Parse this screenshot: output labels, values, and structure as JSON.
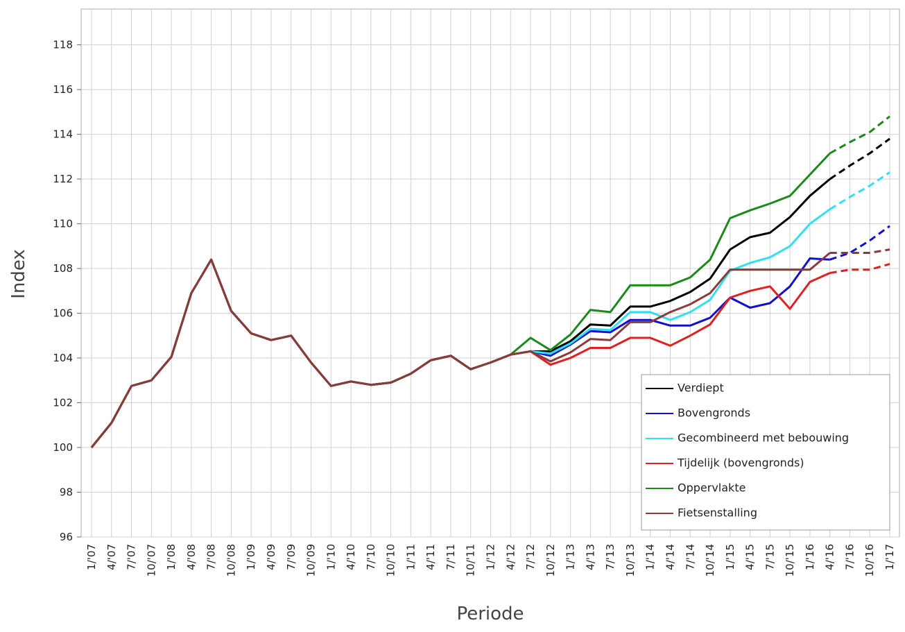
{
  "chart_data": {
    "type": "line",
    "x_label": "Periode",
    "y_label": "Index",
    "categories": [
      "1/'07",
      "4/'07",
      "7/'07",
      "10/'07",
      "1/'08",
      "4/'08",
      "7/'08",
      "10/'08",
      "1/'09",
      "4/'09",
      "7/'09",
      "10/'09",
      "1/'10",
      "4/'10",
      "7/'10",
      "10/'10",
      "1/'11",
      "4/'11",
      "7/'11",
      "10/'11",
      "1/'12",
      "4/'12",
      "7/'12",
      "10/'12",
      "1/'13",
      "4/'13",
      "7/'13",
      "10/'13",
      "1/'14",
      "4/'14",
      "7/'14",
      "10/'14",
      "1/'15",
      "4/'15",
      "7/'15",
      "10/'15",
      "1/'16",
      "4/'16",
      "7/'16",
      "10/'16",
      "1/'17"
    ],
    "dashed_from": "4/'16",
    "ylim": [
      96,
      119.6
    ],
    "yticks": [
      96,
      98,
      100,
      102,
      104,
      106,
      108,
      110,
      112,
      114,
      116,
      118
    ],
    "grid": true,
    "legend": "lower right",
    "series": [
      {
        "name": "Verdiept",
        "color": "#000000",
        "values": [
          100,
          101.1,
          102.75,
          103,
          104.05,
          106.9,
          108.4,
          106.1,
          105.1,
          104.8,
          105,
          103.8,
          102.75,
          102.95,
          102.8,
          102.9,
          103.3,
          103.9,
          104.1,
          103.5,
          103.8,
          104.15,
          104.3,
          104.3,
          104.75,
          105.5,
          105.45,
          106.3,
          106.3,
          106.55,
          106.95,
          107.55,
          108.85,
          109.4,
          109.6,
          110.3,
          111.25,
          112,
          112.6,
          113.15,
          113.8
        ]
      },
      {
        "name": "Bovengronds",
        "color": "#1010d0",
        "values": [
          100,
          101.1,
          102.75,
          103,
          104.05,
          106.9,
          108.4,
          106.1,
          105.1,
          104.8,
          105,
          103.8,
          102.75,
          102.95,
          102.8,
          102.9,
          103.3,
          103.9,
          104.1,
          103.5,
          103.8,
          104.15,
          104.3,
          104.1,
          104.6,
          105.2,
          105.15,
          105.7,
          105.7,
          105.45,
          105.45,
          105.8,
          106.7,
          106.25,
          106.45,
          107.2,
          108.45,
          108.4,
          108.7,
          109.25,
          109.9
        ]
      },
      {
        "name": "Gecombineerd met bebouwing",
        "color": "#30e0f0",
        "values": [
          100,
          101.1,
          102.75,
          103,
          104.05,
          106.9,
          108.4,
          106.1,
          105.1,
          104.8,
          105,
          103.8,
          102.75,
          102.95,
          102.8,
          102.9,
          103.3,
          103.9,
          104.1,
          103.5,
          103.8,
          104.15,
          104.3,
          104.2,
          104.65,
          105.3,
          105.25,
          106.05,
          106.05,
          105.7,
          106.05,
          106.6,
          107.9,
          108.25,
          108.5,
          109,
          110,
          110.65,
          111.2,
          111.7,
          112.3
        ]
      },
      {
        "name": "Tijdelijk (bovengronds)",
        "color": "#e02020",
        "values": [
          100,
          101.1,
          102.75,
          103,
          104.05,
          106.9,
          108.4,
          106.1,
          105.1,
          104.8,
          105,
          103.8,
          102.75,
          102.95,
          102.8,
          102.9,
          103.3,
          103.9,
          104.1,
          103.5,
          103.8,
          104.15,
          104.3,
          103.7,
          104,
          104.45,
          104.45,
          104.9,
          104.9,
          104.55,
          105,
          105.5,
          106.7,
          107,
          107.2,
          106.2,
          107.4,
          107.8,
          107.95,
          107.95,
          108.2
        ]
      },
      {
        "name": "Oppervlakte",
        "color": "#1a8a1a",
        "values": [
          100,
          101.1,
          102.75,
          103,
          104.05,
          106.9,
          108.4,
          106.1,
          105.1,
          104.8,
          105,
          103.8,
          102.75,
          102.95,
          102.8,
          102.9,
          103.3,
          103.9,
          104.1,
          103.5,
          103.8,
          104.15,
          104.9,
          104.35,
          105.05,
          106.15,
          106.05,
          107.25,
          107.25,
          107.25,
          107.6,
          108.4,
          110.25,
          110.6,
          110.9,
          111.25,
          112.2,
          113.15,
          113.65,
          114.1,
          114.8
        ]
      },
      {
        "name": "Fietsenstalling",
        "color": "#8b3a3a",
        "values": [
          100,
          101.1,
          102.75,
          103,
          104.05,
          106.9,
          108.4,
          106.1,
          105.1,
          104.8,
          105,
          103.8,
          102.75,
          102.95,
          102.8,
          102.9,
          103.3,
          103.9,
          104.1,
          103.5,
          103.8,
          104.15,
          104.3,
          103.85,
          104.25,
          104.85,
          104.8,
          105.6,
          105.6,
          106.05,
          106.4,
          106.9,
          107.95,
          107.95,
          107.95,
          107.95,
          107.95,
          108.7,
          108.7,
          108.7,
          108.85
        ]
      }
    ]
  }
}
